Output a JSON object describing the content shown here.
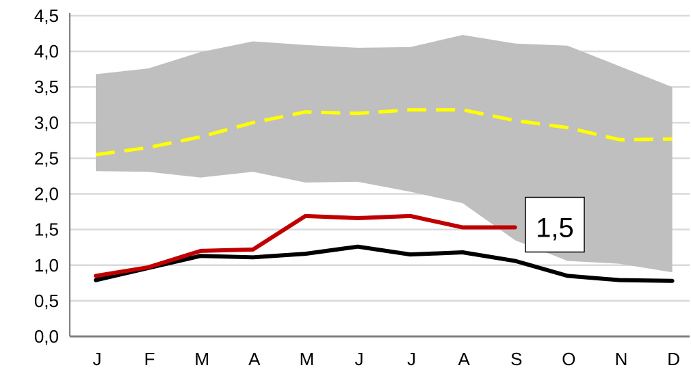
{
  "chart_data": {
    "type": "line",
    "categories": [
      "J",
      "F",
      "M",
      "A",
      "M",
      "J",
      "J",
      "A",
      "S",
      "O",
      "N",
      "D"
    ],
    "ylim": [
      0,
      4.5
    ],
    "yticks": [
      "0,0",
      "0,5",
      "1,0",
      "1,5",
      "2,0",
      "2,5",
      "3,0",
      "3,5",
      "4,0",
      "4,5"
    ],
    "ytick_values": [
      0,
      0.5,
      1.0,
      1.5,
      2.0,
      2.5,
      3.0,
      3.5,
      4.0,
      4.5
    ],
    "grid": true,
    "band": {
      "upper": [
        3.68,
        3.76,
        3.99,
        4.14,
        4.09,
        4.05,
        4.06,
        4.23,
        4.11,
        4.08,
        3.79,
        3.5
      ],
      "lower": [
        2.32,
        2.31,
        2.23,
        2.31,
        2.16,
        2.17,
        2.03,
        1.87,
        1.35,
        1.06,
        1.02,
        0.9
      ],
      "color": "#bfbfbf"
    },
    "series": [
      {
        "values": [
          2.55,
          2.65,
          2.8,
          3.0,
          3.15,
          3.13,
          3.18,
          3.18,
          3.03,
          2.93,
          2.76,
          2.77
        ],
        "color": "#ffff00",
        "dashed": true
      },
      {
        "values": [
          0.79,
          0.96,
          1.13,
          1.11,
          1.16,
          1.26,
          1.15,
          1.18,
          1.06,
          0.85,
          0.79,
          0.78
        ],
        "color": "#000000",
        "dashed": false
      },
      {
        "values": [
          0.85,
          0.97,
          1.2,
          1.22,
          1.69,
          1.66,
          1.69,
          1.53,
          1.53,
          null,
          null,
          null
        ],
        "color": "#c00000",
        "dashed": false
      }
    ],
    "annotation": {
      "text": "1,5",
      "series_index": 2,
      "point_index": 8
    }
  }
}
